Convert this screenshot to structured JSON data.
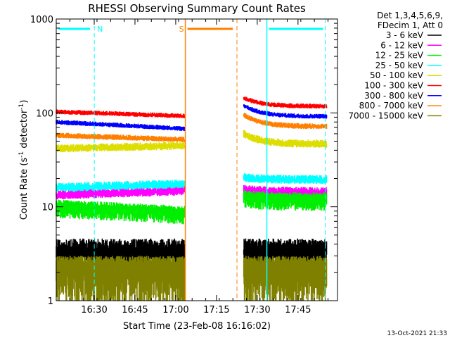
{
  "chart_data": {
    "type": "line",
    "title": "RHESSI Observing Summary Count Rates",
    "xlabel": "Start Time (23-Feb-08 16:16:02)",
    "ylabel_main": "Count Rate (s",
    "ylabel_sup1": "-1",
    "ylabel_mid": " detector",
    "ylabel_sup2": "-1",
    "ylabel_end": ")",
    "y_scale": "log",
    "ylim": [
      1,
      1000
    ],
    "xlim_minutes": [
      0,
      103.5
    ],
    "x_ticks": [
      {
        "minute": 13.97,
        "label": "16:30"
      },
      {
        "minute": 28.97,
        "label": "16:45"
      },
      {
        "minute": 43.97,
        "label": "17:00"
      },
      {
        "minute": 58.97,
        "label": "17:15"
      },
      {
        "minute": 73.97,
        "label": "17:30"
      },
      {
        "minute": 88.97,
        "label": "17:45"
      }
    ],
    "y_ticks": [
      {
        "value": 1,
        "label": "1"
      },
      {
        "value": 10,
        "label": "10"
      },
      {
        "value": 100,
        "label": "100"
      },
      {
        "value": 1000,
        "label": "1000"
      }
    ],
    "legend_header": [
      "Det 1,3,4,5,6,9,",
      "FDecim 1, Att 0"
    ],
    "legend_position": "right",
    "segments": [
      [
        0,
        47.2
      ],
      [
        69,
        99.5
      ]
    ],
    "series": [
      {
        "name": "3 - 6 keV",
        "color": "#000000",
        "kind": "noisy",
        "seg1": [
          3.5,
          3.5
        ],
        "seg2": [
          3.5,
          3.5
        ],
        "lo": 2.5,
        "hi": 4.6
      },
      {
        "name": "6 - 12 keV",
        "color": "#ff00ff",
        "kind": "band",
        "seg1": [
          13.5,
          15.0
        ],
        "seg2": [
          15.5,
          14.5
        ],
        "lo_f": 0.88,
        "hi_f": 1.12
      },
      {
        "name": "12 - 25 keV",
        "color": "#00ee00",
        "kind": "band",
        "seg1": [
          10.5,
          9.0
        ],
        "seg2": [
          13.5,
          12.5
        ],
        "lo_f": 0.72,
        "hi_f": 1.14
      },
      {
        "name": "25 - 50 keV",
        "color": "#00ffff",
        "kind": "band",
        "seg1": [
          16.0,
          17.5
        ],
        "seg2": [
          20.5,
          19.5
        ],
        "lo_f": 0.9,
        "hi_f": 1.12
      },
      {
        "name": "50 - 100 keV",
        "color": "#dddd00",
        "kind": "band",
        "seg1": [
          42.0,
          45.0
        ],
        "seg2": [
          60.0,
          47.0
        ],
        "lo_f": 0.9,
        "hi_f": 1.1
      },
      {
        "name": "100 - 300 keV",
        "color": "#ff0000",
        "kind": "band",
        "seg1": [
          103.0,
          93.0
        ],
        "seg2": [
          145.0,
          118.0
        ],
        "lo_f": 0.94,
        "hi_f": 1.06
      },
      {
        "name": "300 - 800 keV",
        "color": "#0000ff",
        "kind": "band",
        "seg1": [
          80.0,
          68.0
        ],
        "seg2": [
          120.0,
          92.0
        ],
        "lo_f": 0.94,
        "hi_f": 1.06
      },
      {
        "name": "800 - 7000 keV",
        "color": "#ff8000",
        "kind": "band",
        "seg1": [
          58.0,
          52.0
        ],
        "seg2": [
          95.0,
          72.0
        ],
        "lo_f": 0.93,
        "hi_f": 1.07
      },
      {
        "name": "7000 - 15000 keV",
        "color": "#808000",
        "kind": "noisy",
        "seg1": [
          2.5,
          2.5
        ],
        "seg2": [
          2.5,
          2.5
        ],
        "lo": 1.0,
        "hi": 3.0
      }
    ],
    "annotations": [
      {
        "label": "N",
        "color": "#00ffff",
        "start": 0,
        "end": 14.0,
        "style": "bar"
      },
      {
        "label": "S",
        "color": "#ff8000",
        "start": 47.5,
        "end": 66.5,
        "style": "bar"
      },
      {
        "label": "",
        "color": "#00ffff",
        "start": 77.5,
        "end": 99.0,
        "style": "bar"
      }
    ],
    "vlines": [
      {
        "minute": 14.0,
        "color": "#00ffff",
        "dash": true
      },
      {
        "minute": 47.5,
        "color": "#ff8000",
        "dash": false
      },
      {
        "minute": 66.5,
        "color": "#ff8000",
        "dash": true
      },
      {
        "minute": 77.5,
        "color": "#00ffff",
        "dash": false
      },
      {
        "minute": 99.0,
        "color": "#00ffff",
        "dash": true
      }
    ],
    "footer": "13-Oct-2021 21:33"
  }
}
